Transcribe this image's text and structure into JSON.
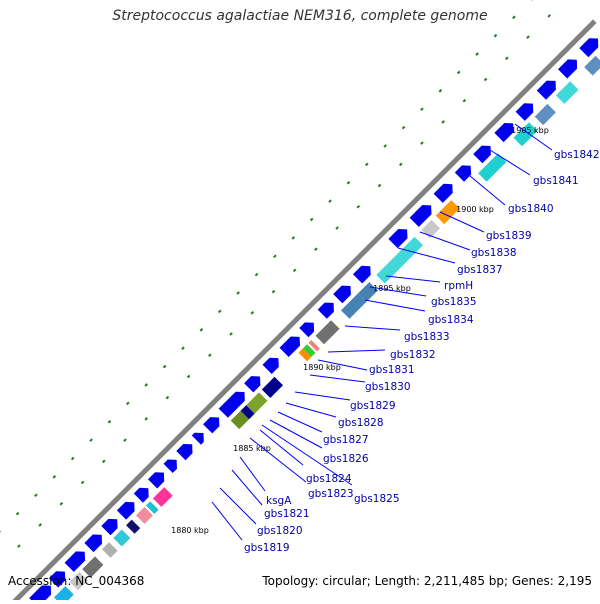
{
  "title": "Streptococcus agalactiae NEM316, complete genome",
  "footer": {
    "accession": "Accession: NC_004368",
    "topology": "Topology: circular; Length: 2,211,485 bp; Genes: 2,195"
  },
  "ticks": [
    "1905 kbp",
    "1900 kbp",
    "1895 kbp",
    "1890 kbp",
    "1885 kbp",
    "1880 kbp"
  ],
  "gene_labels": [
    "gbs1842",
    "gbs1841",
    "gbs1840",
    "gbs1839",
    "gbs1838",
    "gbs1837",
    "rpmH",
    "gbs1835",
    "gbs1834",
    "gbs1833",
    "gbs1832",
    "gbs1831",
    "gbs1830",
    "gbs1829",
    "gbs1828",
    "gbs1827",
    "gbs1826",
    "gbs1824",
    "gbs1823",
    "gbs1825",
    "ksgA",
    "gbs1821",
    "gbs1820",
    "gbs1819"
  ],
  "colors": {
    "cds": "#0000ee",
    "backbone": "#808080",
    "label_line": "#0000ff",
    "label_text": "#0000aa",
    "gc_skew": "#1f7a1f"
  }
}
